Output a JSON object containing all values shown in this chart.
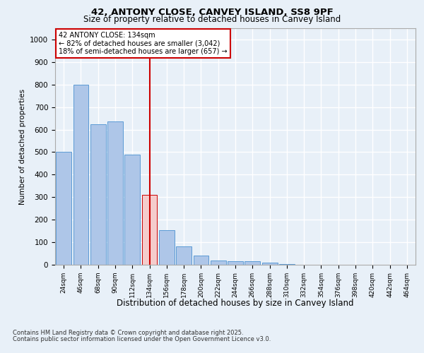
{
  "title_line1": "42, ANTONY CLOSE, CANVEY ISLAND, SS8 9PF",
  "title_line2": "Size of property relative to detached houses in Canvey Island",
  "xlabel": "Distribution of detached houses by size in Canvey Island",
  "ylabel": "Number of detached properties",
  "categories": [
    "24sqm",
    "46sqm",
    "68sqm",
    "90sqm",
    "112sqm",
    "134sqm",
    "156sqm",
    "178sqm",
    "200sqm",
    "222sqm",
    "244sqm",
    "266sqm",
    "288sqm",
    "310sqm",
    "332sqm",
    "354sqm",
    "376sqm",
    "398sqm",
    "420sqm",
    "442sqm",
    "464sqm"
  ],
  "values": [
    500,
    800,
    625,
    635,
    490,
    310,
    155,
    80,
    42,
    20,
    15,
    15,
    8,
    2,
    1,
    0,
    0,
    0,
    0,
    0,
    0
  ],
  "bar_color": "#aec6e8",
  "bar_edge_color": "#5b9bd5",
  "highlight_index": 5,
  "highlight_color_fill": "#f4cccc",
  "highlight_edge_color": "#cc0000",
  "vline_color": "#cc0000",
  "annotation_title": "42 ANTONY CLOSE: 134sqm",
  "annotation_line1": "← 82% of detached houses are smaller (3,042)",
  "annotation_line2": "18% of semi-detached houses are larger (657) →",
  "annotation_box_color": "#cc0000",
  "annotation_fill": "#ffffff",
  "ylim": [
    0,
    1050
  ],
  "yticks": [
    0,
    100,
    200,
    300,
    400,
    500,
    600,
    700,
    800,
    900,
    1000
  ],
  "background_color": "#e8f0f8",
  "plot_bg_color": "#e8f0f8",
  "grid_color": "#ffffff",
  "footnote1": "Contains HM Land Registry data © Crown copyright and database right 2025.",
  "footnote2": "Contains public sector information licensed under the Open Government Licence v3.0."
}
